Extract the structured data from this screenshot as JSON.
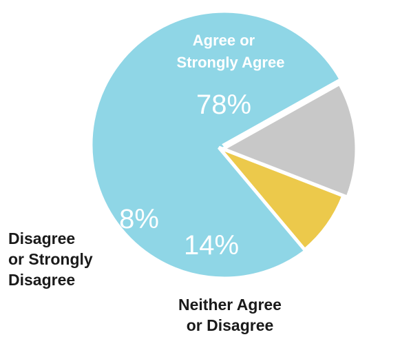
{
  "chart_data": {
    "type": "pie",
    "slices": [
      {
        "label": "Agree or Strongly Agree",
        "label_lines": [
          "Agree or",
          "Strongly Agree"
        ],
        "value": 78,
        "value_label": "78%",
        "color": "#8fd6e6"
      },
      {
        "label": "Neither Agree or Disagree",
        "label_lines": [
          "Neither Agree",
          "or Disagree"
        ],
        "value": 14,
        "value_label": "14%",
        "color": "#c8c8c8"
      },
      {
        "label": "Disagree or Strongly Disagree",
        "label_lines": [
          "Disagree",
          "or Strongly",
          "Disagree"
        ],
        "value": 8,
        "value_label": "8%",
        "color": "#ecc94b"
      }
    ]
  }
}
